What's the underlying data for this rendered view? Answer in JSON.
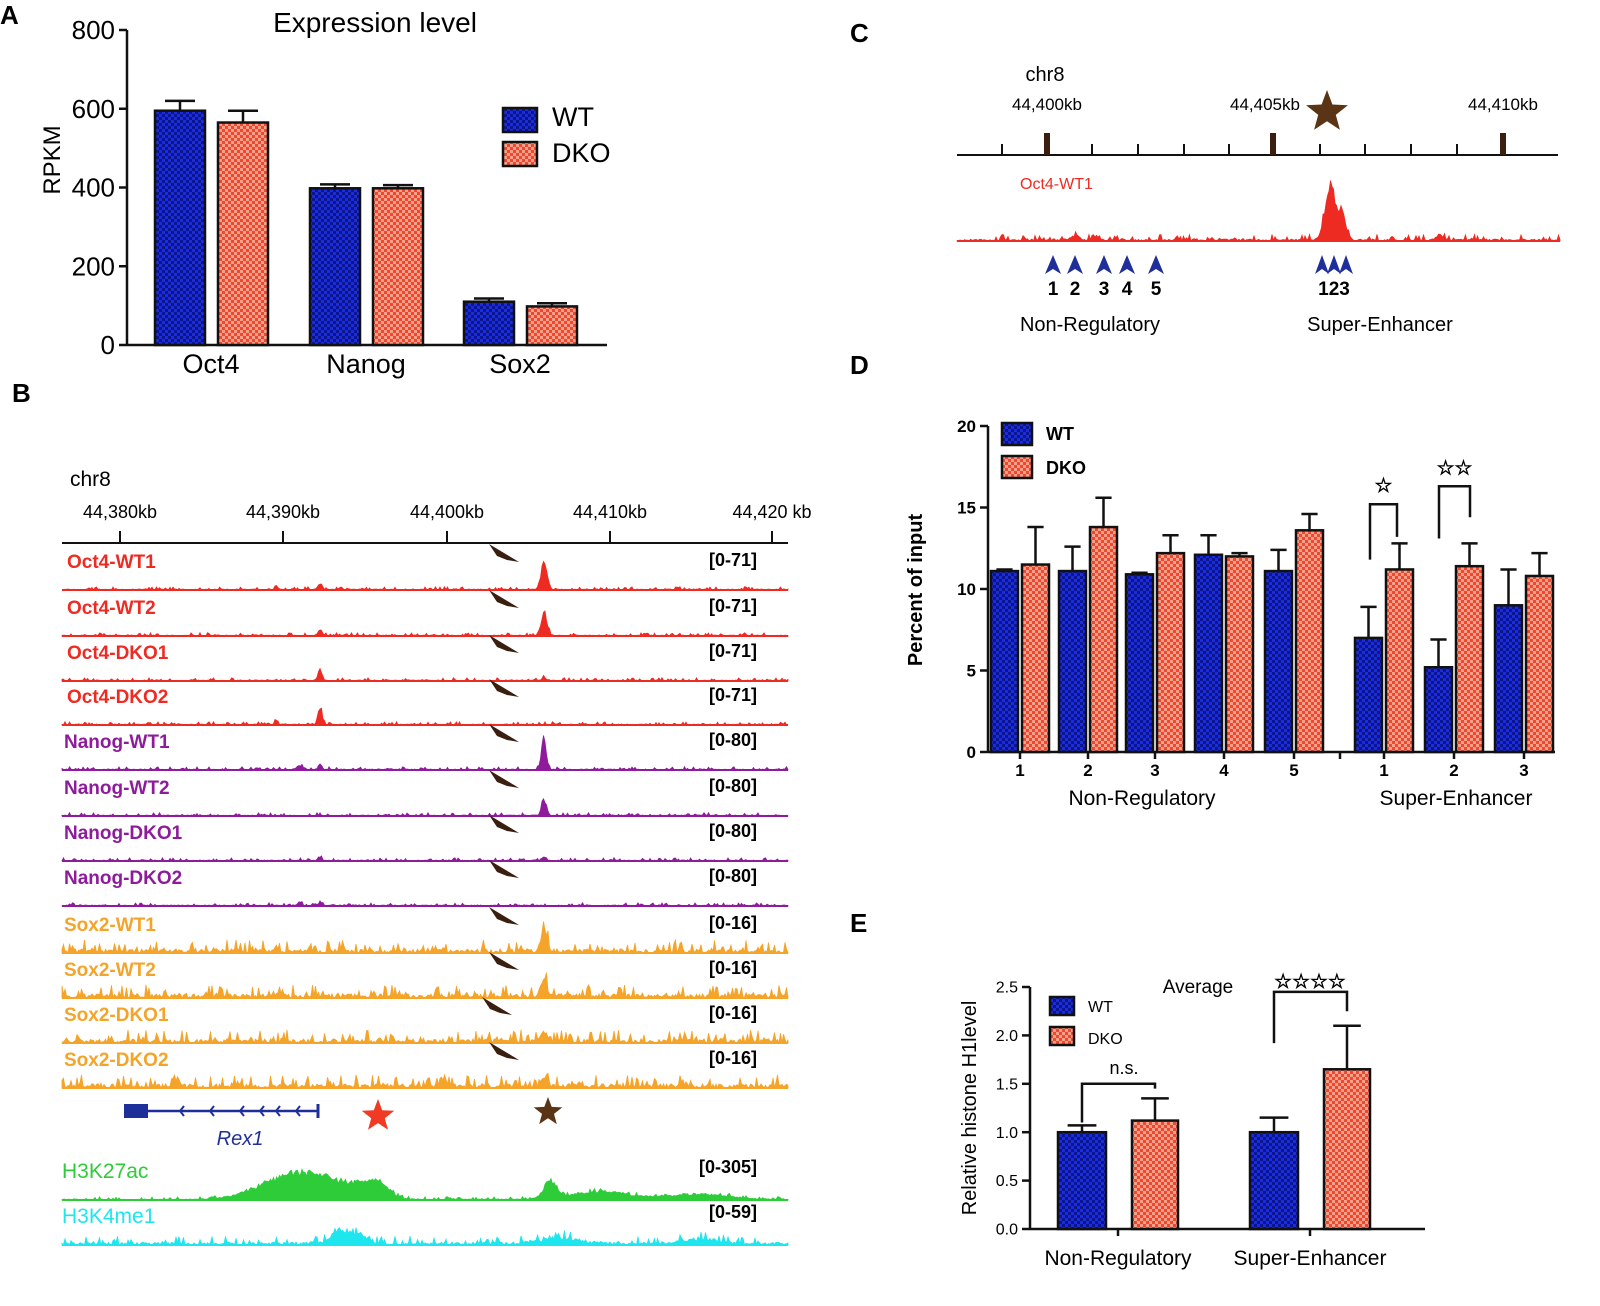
{
  "panel_letters": {
    "a": "A",
    "b": "B",
    "c": "C",
    "d": "D",
    "e": "E"
  },
  "colors": {
    "wt": "#1a2be0",
    "dko": "#f0472f",
    "oct4": "#ee2b22",
    "nanog": "#8e1b9c",
    "sox2": "#f5a42a",
    "h3k27ac": "#2fcc3a",
    "h3k4me1": "#1ee6ef",
    "star_brown": "#5a3414",
    "star_red": "#f03a24",
    "gene": "#1f2f9a"
  },
  "chart_data": [
    {
      "id": "A",
      "type": "bar",
      "title": "Expression level",
      "ylabel": "RPKM",
      "xlabel": "",
      "ylim": [
        0,
        800
      ],
      "yticks": [
        "0",
        "200",
        "400",
        "600",
        "800"
      ],
      "categories": [
        "Oct4",
        "Nanog",
        "Sox2"
      ],
      "legend": "top-right",
      "series": [
        {
          "name": "WT",
          "values": [
            595,
            398,
            110
          ],
          "error": [
            25,
            10,
            8
          ]
        },
        {
          "name": "DKO",
          "values": [
            565,
            398,
            98
          ],
          "error": [
            30,
            8,
            8
          ]
        }
      ]
    },
    {
      "id": "D",
      "type": "bar",
      "ylabel": "Percent of input",
      "ylim": [
        0,
        20
      ],
      "yticks": [
        "0",
        "5",
        "10",
        "15",
        "20"
      ],
      "categories": [
        "1",
        "2",
        "3",
        "4",
        "5",
        "1",
        "2",
        "3"
      ],
      "groups": [
        {
          "label": "Non-Regulatory",
          "categories": [
            0,
            1,
            2,
            3,
            4
          ]
        },
        {
          "label": "Super-Enhancer",
          "categories": [
            5,
            6,
            7
          ]
        }
      ],
      "legend": "top-left",
      "series": [
        {
          "name": "WT",
          "values": [
            11.1,
            11.1,
            10.9,
            12.1,
            11.1,
            7.0,
            5.2,
            9.0
          ],
          "error": [
            0.1,
            1.5,
            0.1,
            1.2,
            1.3,
            1.9,
            1.7,
            2.2
          ]
        },
        {
          "name": "DKO",
          "values": [
            11.5,
            13.8,
            12.2,
            12.0,
            13.6,
            11.2,
            11.4,
            10.8
          ],
          "error": [
            2.3,
            1.8,
            1.1,
            0.2,
            1.0,
            1.6,
            1.4,
            1.4
          ]
        }
      ],
      "annotations": [
        "☆",
        "☆☆"
      ]
    },
    {
      "id": "E",
      "type": "bar",
      "title": "Average",
      "ylabel": "Relative histone H1level",
      "ylim": [
        0,
        2.5
      ],
      "yticks": [
        "0.0",
        "0.5",
        "1.0",
        "1.5",
        "2.0",
        "2.5"
      ],
      "categories": [
        "Non-Regulatory",
        "Super-Enhancer"
      ],
      "legend": "top-left",
      "series": [
        {
          "name": "WT",
          "values": [
            1.0,
            1.0
          ],
          "error": [
            0.07,
            0.15
          ]
        },
        {
          "name": "DKO",
          "values": [
            1.12,
            1.65
          ],
          "error": [
            0.23,
            0.45
          ]
        }
      ],
      "annotations": [
        "n.s.",
        "☆☆☆☆"
      ]
    }
  ],
  "panel_b": {
    "chrom": "chr8",
    "ruler_labels": [
      "44,380kb",
      "44,390kb",
      "44,400kb",
      "44,410kb",
      "44,420 kb"
    ],
    "tracks": [
      {
        "label": "Oct4-WT1",
        "range": "[0-71]",
        "factor": "oct4"
      },
      {
        "label": "Oct4-WT2",
        "range": "[0-71]",
        "factor": "oct4"
      },
      {
        "label": "Oct4-DKO1",
        "range": "[0-71]",
        "factor": "oct4"
      },
      {
        "label": "Oct4-DKO2",
        "range": "[0-71]",
        "factor": "oct4"
      },
      {
        "label": "Nanog-WT1",
        "range": "[0-80]",
        "factor": "nanog"
      },
      {
        "label": "Nanog-WT2",
        "range": "[0-80]",
        "factor": "nanog"
      },
      {
        "label": "Nanog-DKO1",
        "range": "[0-80]",
        "factor": "nanog"
      },
      {
        "label": "Nanog-DKO2",
        "range": "[0-80]",
        "factor": "nanog"
      },
      {
        "label": "Sox2-WT1",
        "range": "[0-16]",
        "factor": "sox2"
      },
      {
        "label": "Sox2-WT2",
        "range": "[0-16]",
        "factor": "sox2"
      },
      {
        "label": "Sox2-DKO1",
        "range": "[0-16]",
        "factor": "sox2"
      },
      {
        "label": "Sox2-DKO2",
        "range": "[0-16]",
        "factor": "sox2"
      }
    ],
    "gene": "Rex1",
    "histone_tracks": [
      {
        "label": "H3K27ac",
        "range": "[0-305]",
        "factor": "h3k27ac"
      },
      {
        "label": "H3K4me1",
        "range": "[0-59]",
        "factor": "h3k4me1"
      }
    ]
  },
  "panel_c": {
    "chrom": "chr8",
    "ruler_labels": [
      "44,400kb",
      "44,405kb",
      "44,410kb"
    ],
    "track_label": "Oct4-WT1",
    "nonreg_numbers": [
      "1",
      "2",
      "3",
      "4",
      "5"
    ],
    "se_numbers": "123",
    "group_labels": [
      "Non-Regulatory",
      "Super-Enhancer"
    ]
  }
}
